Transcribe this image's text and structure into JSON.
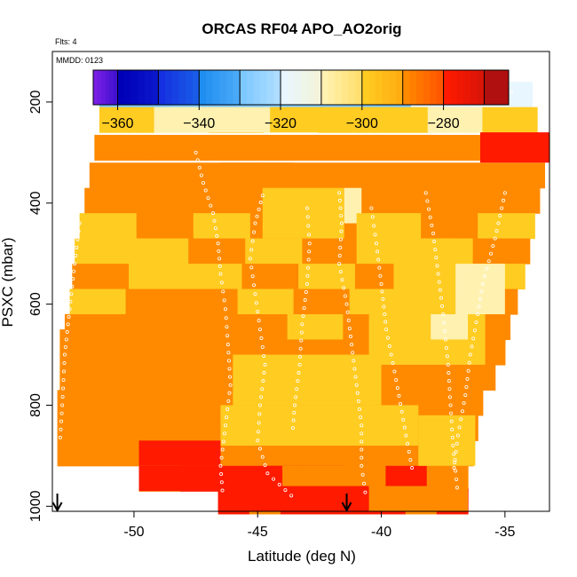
{
  "chart_data": {
    "type": "heatmap",
    "title": "ORCAS RF04 APO_AO2orig",
    "flights_note": "Flts: 4",
    "date_note": "MMDD: 0123",
    "xlabel": "Latitude (deg N)",
    "ylabel": "PSXC (mbar)",
    "xlim": [
      -53.3,
      -33.2
    ],
    "ylim": [
      1010,
      100
    ],
    "y_reversed": true,
    "x_ticks": [
      -50,
      -45,
      -40,
      -35
    ],
    "y_ticks": [
      200,
      400,
      600,
      800,
      1000
    ],
    "colorbar": {
      "range": [
        -366,
        -264
      ],
      "ticks": [
        -360,
        -340,
        -320,
        -300,
        -280
      ],
      "breaks": [
        -366,
        -360,
        -350,
        -340,
        -330,
        -320,
        -310,
        -300,
        -290,
        -280,
        -270,
        -264
      ],
      "colors": [
        "#7a1fe6",
        "#0000b8",
        "#1530e0",
        "#1f8ef0",
        "#7dc8ff",
        "#e8f6ff",
        "#fff1b0",
        "#ffcc22",
        "#ff8a00",
        "#ff1a00",
        "#b01010"
      ]
    },
    "layers": [
      {
        "p": 185,
        "x0": -51.4,
        "x1": -33.9,
        "v": -319
      },
      {
        "p": 235,
        "x0": -51.4,
        "x1": -33.7,
        "v": -300
      },
      {
        "p": 290,
        "x0": -51.6,
        "x1": -33.2,
        "v": -283
      },
      {
        "p": 345,
        "x0": -51.8,
        "x1": -33.4,
        "v": -286
      },
      {
        "p": 395,
        "x0": -52.0,
        "x1": -33.6,
        "v": -288
      },
      {
        "p": 445,
        "x0": -52.2,
        "x1": -33.8,
        "v": -290
      },
      {
        "p": 495,
        "x0": -52.4,
        "x1": -34.0,
        "v": -291
      },
      {
        "p": 545,
        "x0": -52.5,
        "x1": -34.2,
        "v": -291
      },
      {
        "p": 595,
        "x0": -52.6,
        "x1": -34.5,
        "v": -290
      },
      {
        "p": 645,
        "x0": -52.8,
        "x1": -34.8,
        "v": -289
      },
      {
        "p": 695,
        "x0": -52.9,
        "x1": -35.0,
        "v": -287
      },
      {
        "p": 745,
        "x0": -53.0,
        "x1": -35.4,
        "v": -285
      },
      {
        "p": 795,
        "x0": -53.1,
        "x1": -35.9,
        "v": -286
      },
      {
        "p": 845,
        "x0": -53.1,
        "x1": -36.1,
        "v": -287
      },
      {
        "p": 895,
        "x0": -53.1,
        "x1": -36.3,
        "v": -284
      },
      {
        "p": 945,
        "x0": -49.8,
        "x1": -36.5,
        "v": -280
      },
      {
        "p": 990,
        "x0": -46.6,
        "x1": -36.5,
        "v": -279
      }
    ],
    "patches": [
      {
        "p0": 160,
        "p1": 210,
        "x0": -51.2,
        "x1": -39.0,
        "v": -322
      },
      {
        "p0": 160,
        "p1": 210,
        "x0": -38.8,
        "x1": -34.5,
        "v": -318
      },
      {
        "p0": 210,
        "p1": 260,
        "x0": -48.5,
        "x1": -44.5,
        "v": -303
      },
      {
        "p0": 210,
        "p1": 260,
        "x0": -44.5,
        "x1": -39.5,
        "v": -298
      },
      {
        "p0": 260,
        "p1": 320,
        "x0": -36.0,
        "x1": -33.2,
        "v": -278
      },
      {
        "p0": 320,
        "p1": 370,
        "x0": -46.5,
        "x1": -43.5,
        "v": -283
      },
      {
        "p0": 370,
        "p1": 470,
        "x0": -44.8,
        "x1": -41.5,
        "v": -294
      },
      {
        "p0": 370,
        "p1": 440,
        "x0": -41.5,
        "x1": -40.8,
        "v": -301
      },
      {
        "p0": 420,
        "p1": 520,
        "x0": -41.0,
        "x1": -38.5,
        "v": -296
      },
      {
        "p0": 470,
        "p1": 620,
        "x0": -39.5,
        "x1": -37.0,
        "v": -299
      },
      {
        "p0": 520,
        "p1": 620,
        "x0": -37.0,
        "x1": -35.0,
        "v": -301
      },
      {
        "p0": 620,
        "p1": 720,
        "x0": -40.5,
        "x1": -35.8,
        "v": -297
      },
      {
        "p0": 620,
        "p1": 670,
        "x0": -38.0,
        "x1": -36.5,
        "v": -302
      },
      {
        "p0": 700,
        "p1": 800,
        "x0": -46.0,
        "x1": -40.0,
        "v": -292
      },
      {
        "p0": 650,
        "p1": 720,
        "x0": -53.0,
        "x1": -51.0,
        "v": -282
      },
      {
        "p0": 800,
        "p1": 880,
        "x0": -46.5,
        "x1": -38.5,
        "v": -291
      },
      {
        "p0": 820,
        "p1": 920,
        "x0": -38.5,
        "x1": -36.2,
        "v": -293
      },
      {
        "p0": 870,
        "p1": 920,
        "x0": -49.8,
        "x1": -46.5,
        "v": -277
      },
      {
        "p0": 920,
        "p1": 970,
        "x0": -49.8,
        "x1": -44.0,
        "v": -275
      },
      {
        "p0": 920,
        "p1": 970,
        "x0": -44.0,
        "x1": -41.0,
        "v": -281
      },
      {
        "p0": 960,
        "p1": 1010,
        "x0": -46.6,
        "x1": -40.5,
        "v": -276
      },
      {
        "p0": 960,
        "p1": 1010,
        "x0": -40.5,
        "x1": -36.5,
        "v": -283
      }
    ],
    "tracks": [
      [
        [
          -51.3,
          180
        ],
        [
          -49.8,
          180
        ],
        [
          -48.2,
          182
        ]
      ],
      [
        [
          -38.8,
          180
        ],
        [
          -36.8,
          181
        ],
        [
          -34.4,
          180
        ]
      ],
      [
        [
          -47.5,
          300
        ],
        [
          -47.2,
          360
        ],
        [
          -46.8,
          420
        ],
        [
          -46.6,
          480
        ],
        [
          -46.5,
          540
        ],
        [
          -46.3,
          610
        ],
        [
          -46.2,
          680
        ],
        [
          -46.1,
          760
        ],
        [
          -46.3,
          840
        ],
        [
          -46.5,
          920
        ],
        [
          -46.4,
          985
        ]
      ],
      [
        [
          -52.2,
          440
        ],
        [
          -52.4,
          520
        ],
        [
          -52.6,
          610
        ],
        [
          -52.8,
          700
        ],
        [
          -52.9,
          800
        ],
        [
          -53.0,
          880
        ]
      ],
      [
        [
          -44.8,
          385
        ],
        [
          -45.1,
          440
        ],
        [
          -45.3,
          510
        ],
        [
          -45.1,
          580
        ],
        [
          -44.9,
          650
        ],
        [
          -44.7,
          720
        ],
        [
          -44.9,
          800
        ],
        [
          -45.0,
          870
        ],
        [
          -44.6,
          935
        ],
        [
          -43.4,
          990
        ]
      ],
      [
        [
          -43.0,
          410
        ],
        [
          -42.9,
          480
        ],
        [
          -43.0,
          560
        ],
        [
          -43.2,
          640
        ],
        [
          -43.3,
          720
        ],
        [
          -43.5,
          800
        ],
        [
          -43.6,
          860
        ]
      ],
      [
        [
          -41.7,
          380
        ],
        [
          -41.6,
          440
        ],
        [
          -41.7,
          520
        ],
        [
          -41.4,
          600
        ],
        [
          -41.2,
          680
        ],
        [
          -41.0,
          760
        ],
        [
          -40.8,
          840
        ],
        [
          -40.8,
          920
        ],
        [
          -40.6,
          990
        ]
      ],
      [
        [
          -40.4,
          410
        ],
        [
          -40.2,
          480
        ],
        [
          -40.0,
          560
        ],
        [
          -39.8,
          650
        ],
        [
          -39.4,
          750
        ],
        [
          -39.0,
          860
        ],
        [
          -38.7,
          940
        ]
      ],
      [
        [
          -38.2,
          380
        ],
        [
          -37.9,
          460
        ],
        [
          -37.7,
          540
        ],
        [
          -37.5,
          620
        ],
        [
          -37.3,
          720
        ],
        [
          -37.2,
          800
        ],
        [
          -37.1,
          880
        ],
        [
          -36.9,
          980
        ]
      ],
      [
        [
          -35.0,
          380
        ],
        [
          -35.4,
          470
        ],
        [
          -35.9,
          560
        ],
        [
          -36.1,
          620
        ],
        [
          -36.4,
          700
        ],
        [
          -36.6,
          780
        ],
        [
          -36.9,
          860
        ],
        [
          -37.1,
          940
        ]
      ]
    ],
    "arrows_x": [
      -53.1,
      -41.4
    ]
  }
}
